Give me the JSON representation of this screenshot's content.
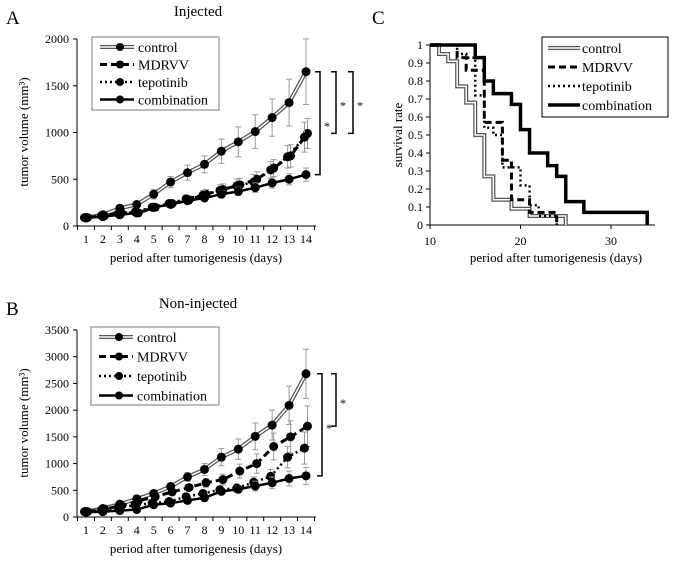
{
  "figure": {
    "panels": [
      "A",
      "B",
      "C"
    ]
  },
  "chart_data": [
    {
      "panel": "A",
      "type": "line",
      "title": "Injected",
      "xlabel": "period after tumorigenesis (days)",
      "ylabel": "tumor volume (mm³)",
      "ylim": [
        0,
        2000
      ],
      "yticks": [
        0,
        500,
        1000,
        1500,
        2000
      ],
      "x": [
        1,
        2,
        3,
        4,
        5,
        6,
        7,
        8,
        9,
        10,
        11,
        12,
        13,
        14
      ],
      "legend": "top-left",
      "series": [
        {
          "name": "control",
          "style": "double",
          "values": [
            90,
            120,
            190,
            230,
            340,
            470,
            570,
            660,
            800,
            900,
            1010,
            1160,
            1320,
            1650
          ],
          "errors": [
            15,
            20,
            25,
            25,
            50,
            60,
            80,
            90,
            130,
            160,
            180,
            200,
            250,
            350
          ]
        },
        {
          "name": "MDRVV",
          "style": "dashed",
          "values": [
            90,
            110,
            140,
            140,
            200,
            240,
            280,
            340,
            390,
            440,
            500,
            620,
            750,
            990
          ],
          "errors": [
            10,
            15,
            20,
            20,
            25,
            30,
            40,
            50,
            60,
            70,
            80,
            90,
            120,
            160
          ]
        },
        {
          "name": "tepotinib",
          "style": "dotted",
          "values": [
            90,
            110,
            130,
            150,
            200,
            240,
            290,
            330,
            380,
            430,
            470,
            600,
            740,
            950
          ],
          "errors": [
            10,
            15,
            20,
            20,
            25,
            30,
            40,
            50,
            60,
            70,
            80,
            90,
            120,
            160
          ]
        },
        {
          "name": "combination",
          "style": "solid",
          "values": [
            85,
            100,
            120,
            140,
            200,
            230,
            270,
            300,
            340,
            370,
            410,
            460,
            500,
            550
          ],
          "errors": [
            10,
            15,
            15,
            20,
            20,
            25,
            30,
            35,
            40,
            45,
            50,
            55,
            60,
            70
          ]
        }
      ],
      "significance": [
        "*",
        "*",
        "*"
      ]
    },
    {
      "panel": "B",
      "type": "line",
      "title": "Non-injected",
      "xlabel": "period after tumorigenesis (days)",
      "ylabel": "tumor volume (mm³)",
      "ylim": [
        0,
        3500
      ],
      "yticks": [
        0,
        500,
        1000,
        1500,
        2000,
        2500,
        3000,
        3500
      ],
      "x": [
        1,
        2,
        3,
        4,
        5,
        6,
        7,
        8,
        9,
        10,
        11,
        12,
        13,
        14
      ],
      "legend": "top-left",
      "series": [
        {
          "name": "control",
          "style": "double",
          "values": [
            100,
            160,
            240,
            340,
            440,
            570,
            750,
            890,
            1120,
            1270,
            1510,
            1720,
            2090,
            2680
          ],
          "errors": [
            15,
            20,
            30,
            40,
            50,
            60,
            80,
            110,
            160,
            190,
            250,
            280,
            360,
            460
          ]
        },
        {
          "name": "MDRVV",
          "style": "dashed",
          "values": [
            100,
            150,
            210,
            300,
            380,
            470,
            550,
            640,
            700,
            860,
            1000,
            1320,
            1500,
            1700
          ],
          "errors": [
            15,
            20,
            25,
            30,
            40,
            50,
            60,
            80,
            100,
            130,
            180,
            250,
            300,
            380
          ]
        },
        {
          "name": "tepotinib",
          "style": "dotted",
          "values": [
            100,
            130,
            180,
            220,
            260,
            290,
            380,
            440,
            510,
            540,
            650,
            760,
            1120,
            1290
          ],
          "errors": [
            15,
            20,
            25,
            25,
            30,
            40,
            50,
            60,
            70,
            80,
            100,
            130,
            200,
            300
          ]
        },
        {
          "name": "combination",
          "style": "solid",
          "values": [
            90,
            100,
            120,
            140,
            230,
            260,
            310,
            360,
            480,
            520,
            580,
            640,
            720,
            770
          ],
          "errors": [
            10,
            15,
            15,
            20,
            25,
            30,
            40,
            50,
            60,
            70,
            90,
            110,
            140,
            160
          ]
        }
      ],
      "significance": [
        "*",
        "*"
      ]
    },
    {
      "panel": "C",
      "type": "line",
      "subtype": "survival-step",
      "title": "",
      "xlabel": "period after tumorigenesis (days)",
      "ylabel": "survival rate",
      "xlim": [
        10,
        35
      ],
      "xticks": [
        10,
        20,
        30
      ],
      "ylim": [
        0,
        1
      ],
      "yticks": [
        0,
        0.1,
        0.2,
        0.3,
        0.4,
        0.5,
        0.6,
        0.7,
        0.8,
        0.9,
        1
      ],
      "legend": "top-right",
      "series": [
        {
          "name": "control",
          "style": "double",
          "steps": [
            [
              10,
              1
            ],
            [
              11,
              0.95
            ],
            [
              12,
              0.91
            ],
            [
              13,
              0.77
            ],
            [
              14,
              0.68
            ],
            [
              15,
              0.5
            ],
            [
              16,
              0.27
            ],
            [
              17,
              0.14
            ],
            [
              19,
              0.09
            ],
            [
              21,
              0.05
            ],
            [
              25,
              0
            ]
          ]
        },
        {
          "name": "MDRVV",
          "style": "dashed",
          "steps": [
            [
              10,
              1
            ],
            [
              13,
              0.93
            ],
            [
              14,
              0.86
            ],
            [
              16,
              0.57
            ],
            [
              18,
              0.36
            ],
            [
              19,
              0.14
            ],
            [
              21,
              0.07
            ],
            [
              24,
              0
            ]
          ]
        },
        {
          "name": "tepotinib",
          "style": "dotted",
          "steps": [
            [
              10,
              1
            ],
            [
              13,
              0.95
            ],
            [
              14,
              0.93
            ],
            [
              15,
              0.72
            ],
            [
              16,
              0.54
            ],
            [
              17,
              0.5
            ],
            [
              18,
              0.32
            ],
            [
              20,
              0.22
            ],
            [
              21,
              0.11
            ],
            [
              22,
              0.05
            ],
            [
              24,
              0
            ]
          ]
        },
        {
          "name": "combination",
          "style": "thick",
          "steps": [
            [
              10,
              1
            ],
            [
              15,
              0.93
            ],
            [
              16,
              0.8
            ],
            [
              17,
              0.73
            ],
            [
              19,
              0.67
            ],
            [
              20,
              0.53
            ],
            [
              21,
              0.4
            ],
            [
              23,
              0.33
            ],
            [
              24,
              0.27
            ],
            [
              25,
              0.13
            ],
            [
              27,
              0.07
            ],
            [
              34,
              0
            ]
          ]
        }
      ]
    }
  ]
}
